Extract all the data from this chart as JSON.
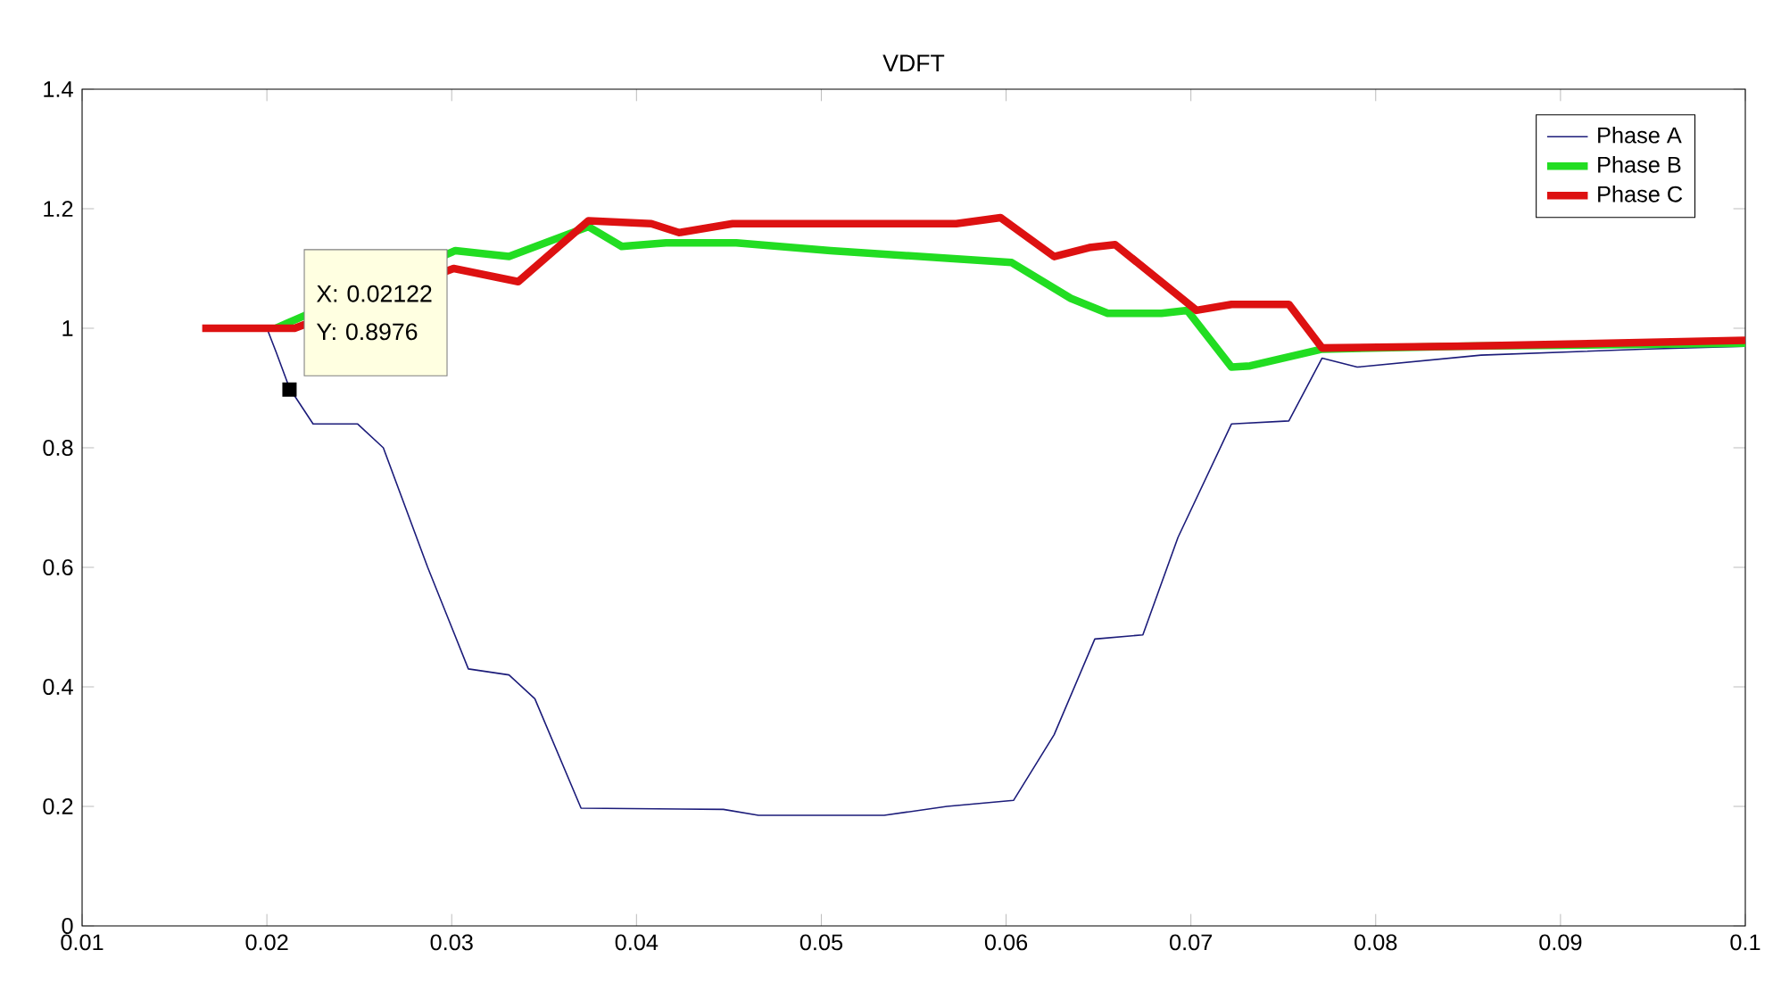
{
  "chart_data": {
    "type": "line",
    "title": "VDFT",
    "xlim": [
      0.01,
      0.1
    ],
    "ylim": [
      0,
      1.4
    ],
    "xticks": [
      0.01,
      0.02,
      0.03,
      0.04,
      0.05,
      0.06,
      0.07,
      0.08,
      0.09,
      0.1
    ],
    "yticks": [
      0,
      0.2,
      0.4,
      0.6,
      0.8,
      1,
      1.2,
      1.4
    ],
    "grid": false,
    "legend": "top right",
    "annotations": [
      "X: 0.02122",
      "Y: 0.8976"
    ],
    "series": [
      {
        "name": "Phase A",
        "color": "#1c1c7a",
        "x": [
          0.02,
          0.0205,
          0.02122,
          0.0225,
          0.0249,
          0.0263,
          0.0287,
          0.0309,
          0.0331,
          0.0345,
          0.037,
          0.0447,
          0.0466,
          0.0534,
          0.0568,
          0.0604,
          0.0626,
          0.0648,
          0.0674,
          0.0693,
          0.0722,
          0.0753,
          0.0771,
          0.079,
          0.0857,
          0.0944,
          0.1
        ],
        "values": [
          1.0,
          0.96,
          0.9,
          0.84,
          0.84,
          0.8,
          0.6,
          0.43,
          0.42,
          0.38,
          0.197,
          0.195,
          0.185,
          0.185,
          0.2,
          0.21,
          0.32,
          0.48,
          0.487,
          0.65,
          0.84,
          0.845,
          0.95,
          0.935,
          0.955,
          0.965,
          0.97
        ]
      },
      {
        "name": "Phase B",
        "color": "#22dd22",
        "x": [
          0.0205,
          0.0212,
          0.0302,
          0.0331,
          0.0374,
          0.0392,
          0.0416,
          0.0454,
          0.0505,
          0.0568,
          0.0603,
          0.0635,
          0.0655,
          0.0684,
          0.0698,
          0.0722,
          0.0732,
          0.0771,
          0.085,
          0.1
        ],
        "values": [
          1.0,
          1.01,
          1.13,
          1.12,
          1.17,
          1.137,
          1.143,
          1.143,
          1.13,
          1.117,
          1.11,
          1.05,
          1.025,
          1.025,
          1.03,
          0.935,
          0.937,
          0.965,
          0.97,
          0.975
        ]
      },
      {
        "name": "Phase C",
        "color": "#dd1111",
        "x": [
          0.0165,
          0.0215,
          0.0301,
          0.0336,
          0.0374,
          0.0408,
          0.0423,
          0.0452,
          0.0573,
          0.0597,
          0.0626,
          0.0645,
          0.0659,
          0.0703,
          0.0722,
          0.0753,
          0.0771,
          0.085,
          0.1
        ],
        "values": [
          1.0,
          1.0,
          1.1,
          1.078,
          1.18,
          1.175,
          1.16,
          1.175,
          1.175,
          1.185,
          1.12,
          1.135,
          1.14,
          1.03,
          1.04,
          1.04,
          0.967,
          0.97,
          0.98
        ]
      }
    ]
  }
}
